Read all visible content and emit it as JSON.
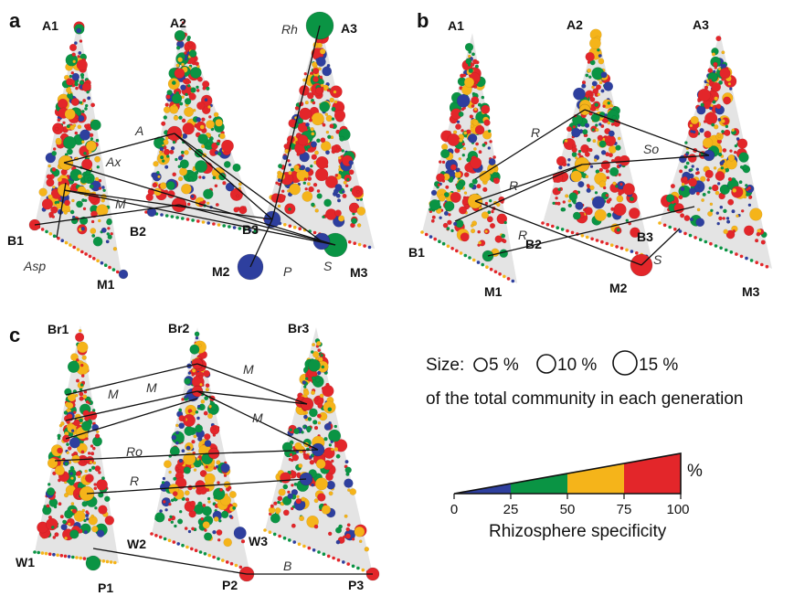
{
  "panels": {
    "a": {
      "letter": "a",
      "vertices": {
        "A1": "A1",
        "A2": "A2",
        "A3": "A3",
        "B1": "B1",
        "B2": "B2",
        "B3": "B3",
        "M1": "M1",
        "M2": "M2",
        "M3": "M3"
      },
      "links": {
        "A": "A",
        "Ax": "Ax",
        "M": "M",
        "Asp": "Asp",
        "Rh": "Rh",
        "P": "P",
        "S": "S"
      }
    },
    "b": {
      "letter": "b",
      "vertices": {
        "A1": "A1",
        "A2": "A2",
        "A3": "A3",
        "B1": "B1",
        "B2": "B2",
        "B3": "B3",
        "M1": "M1",
        "M2": "M2",
        "M3": "M3"
      },
      "links": {
        "R1": "R",
        "R2": "R",
        "R3": "R",
        "So": "So",
        "S": "S"
      }
    },
    "c": {
      "letter": "c",
      "vertices": {
        "Br1": "Br1",
        "Br2": "Br2",
        "Br3": "Br3",
        "W1": "W1",
        "W2": "W2",
        "W3": "W3",
        "P1": "P1",
        "P2": "P2",
        "P3": "P3"
      },
      "links": {
        "M1": "M",
        "M2": "M",
        "M3": "M",
        "M4": "M",
        "Ro": "Ro",
        "R": "R",
        "B": "B"
      }
    }
  },
  "legend": {
    "size_prefix": "Size:",
    "size_5": "5 %",
    "size_10": "10 %",
    "size_15": "15 %",
    "size_caption": "of the total community in each generation",
    "percent_symbol": "%",
    "ticks": [
      "0",
      "25",
      "50",
      "75",
      "100"
    ],
    "scale_title": "Rhizosphere specificity",
    "colors": [
      "#2e3f9e",
      "#0a9444",
      "#f5b41a",
      "#e3262a"
    ]
  },
  "colors": {
    "triangle_fill": "#e4e4e4",
    "blue": "#2e3f9e",
    "green": "#0a9444",
    "orange": "#f5b41a",
    "red": "#e3262a"
  }
}
